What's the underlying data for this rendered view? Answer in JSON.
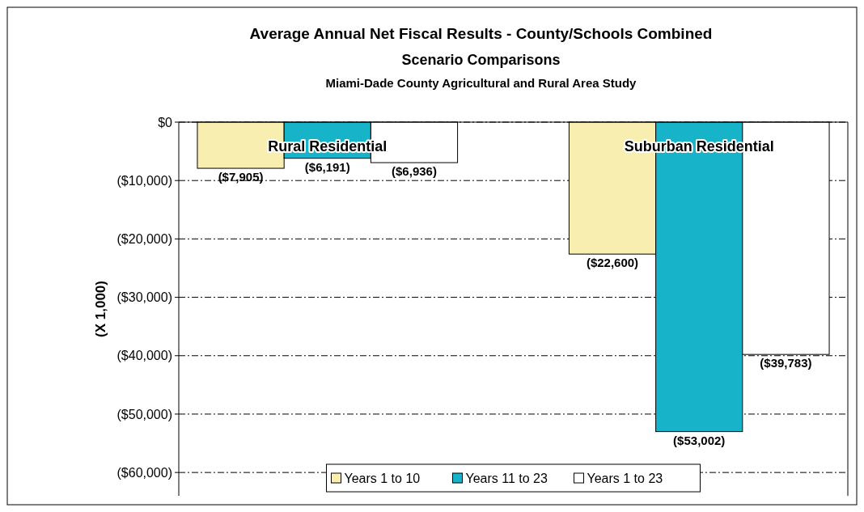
{
  "chart_data": {
    "type": "bar",
    "title": "Average Annual Net Fiscal Results - County/Schools Combined",
    "subtitle": "Scenario Comparisons",
    "annotations": [
      "Miami-Dade County Agricultural and Rural Area Study"
    ],
    "ylabel": "(X 1,000)",
    "categories": [
      "Rural Residential",
      "Suburban Residential"
    ],
    "series": [
      {
        "name": "Years 1 to 10",
        "color": "#f7eeb0",
        "values": [
          -7905,
          -22600
        ],
        "value_labels": [
          "($7,905)",
          "($22,600)"
        ]
      },
      {
        "name": "Years 11 to 23",
        "color": "#17b3c9",
        "values": [
          -6191,
          -53002
        ],
        "value_labels": [
          "($6,191)",
          "($53,002)"
        ]
      },
      {
        "name": "Years 1 to 23",
        "color": "#ffffff",
        "values": [
          -6936,
          -39783
        ],
        "value_labels": [
          "($6,936)",
          "($39,783)"
        ]
      }
    ],
    "ylim": [
      -64000,
      0
    ],
    "yticks": [
      {
        "value": 0,
        "label": "$0"
      },
      {
        "value": -10000,
        "label": "($10,000)"
      },
      {
        "value": -20000,
        "label": "($20,000)"
      },
      {
        "value": -30000,
        "label": "($30,000)"
      },
      {
        "value": -40000,
        "label": "($40,000)"
      },
      {
        "value": -50000,
        "label": "($50,000)"
      },
      {
        "value": -60000,
        "label": "($60,000)"
      }
    ],
    "grid": "y",
    "legend": "bottom"
  }
}
